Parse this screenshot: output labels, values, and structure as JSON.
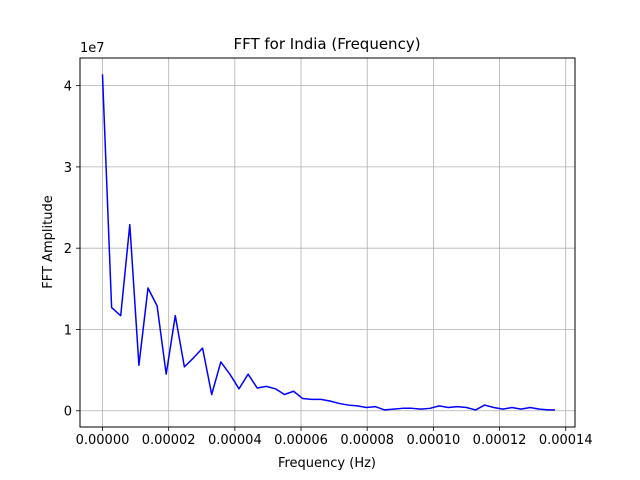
{
  "chart_data": {
    "type": "line",
    "title": "FFT for India (Frequency)",
    "xlabel": "Frequency (Hz)",
    "ylabel": "FFT Amplitude",
    "y_offset_label": "1e7",
    "xlim": [
      -6.8e-06,
      0.0001428
    ],
    "ylim": [
      -2000000,
      43400000
    ],
    "x_ticks": [
      0,
      2e-05,
      4e-05,
      6e-05,
      8e-05,
      0.0001,
      0.00012,
      0.00014
    ],
    "x_tick_labels": [
      "0.00000",
      "0.00002",
      "0.00004",
      "0.00006",
      "0.00008",
      "0.00010",
      "0.00012",
      "0.00014"
    ],
    "y_ticks": [
      0,
      10000000,
      20000000,
      30000000,
      40000000
    ],
    "y_tick_labels": [
      "0",
      "1",
      "2",
      "3",
      "4"
    ],
    "grid": true,
    "line_color": "#0000ff",
    "series": [
      {
        "x": [
          0,
          2.75e-06,
          5.5e-06,
          8.25e-06,
          1.1e-05,
          1.375e-05,
          1.65e-05,
          1.925e-05,
          2.2e-05,
          2.475e-05,
          2.75e-05,
          3.025e-05,
          3.3e-05,
          3.575e-05,
          3.85e-05,
          4.125e-05,
          4.4e-05,
          4.675e-05,
          4.95e-05,
          5.225e-05,
          5.5e-05,
          5.775e-05,
          6.05e-05,
          6.325e-05,
          6.6e-05,
          6.875e-05,
          7.15e-05,
          7.425e-05,
          7.7e-05,
          7.975e-05,
          8.25e-05,
          8.525e-05,
          8.8e-05,
          9.075e-05,
          9.35e-05,
          9.625e-05,
          9.9e-05,
          0.00010175,
          0.0001045,
          0.00010725,
          0.00011,
          0.00011275,
          0.0001155,
          0.00011825,
          0.000121,
          0.00012375,
          0.0001265,
          0.00012925,
          0.000132,
          0.00013475,
          0.0001365
        ],
        "values": [
          41300000,
          12700000,
          11700000,
          22900000,
          5600000,
          15100000,
          12900000,
          4500000,
          11700000,
          5400000,
          6500000,
          7700000,
          2000000,
          6000000,
          4500000,
          2700000,
          4500000,
          2800000,
          3000000,
          2700000,
          2000000,
          2400000,
          1500000,
          1400000,
          1400000,
          1200000,
          900000,
          700000,
          600000,
          400000,
          500000,
          100000,
          200000,
          300000,
          300000,
          200000,
          300000,
          600000,
          400000,
          500000,
          400000,
          100000,
          700000,
          400000,
          200000,
          400000,
          200000,
          400000,
          200000,
          100000,
          100000
        ]
      }
    ]
  }
}
